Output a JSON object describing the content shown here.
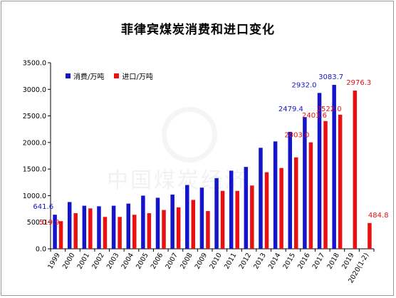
{
  "title": "菲律宾煤炭消费和进口变化",
  "watermark": "中国煤炭经济",
  "colors": {
    "consumption": "#1414c8",
    "import": "#e81010"
  },
  "chart_data": {
    "type": "bar",
    "title": "菲律宾煤炭消费和进口变化",
    "categories": [
      "1999",
      "2000",
      "2001",
      "2002",
      "2003",
      "2004",
      "2005",
      "2006",
      "2007",
      "2008",
      "2009",
      "2010",
      "2011",
      "2012",
      "2013",
      "2014",
      "2015",
      "2016",
      "2017",
      "2018",
      "2019",
      "2020(1-2)"
    ],
    "series": [
      {
        "name": "消费/万吨",
        "values": [
          641.6,
          880,
          810,
          800,
          810,
          850,
          1000,
          960,
          1020,
          1200,
          1150,
          1330,
          1470,
          1540,
          1900,
          2020,
          2200,
          2479.4,
          2932.0,
          3083.7,
          null,
          null
        ],
        "data_labels": {
          "0": "641.6",
          "17": "2479.4",
          "18": "2932.0",
          "19": "3083.7"
        }
      },
      {
        "name": "进口/万吨",
        "values": [
          519.9,
          670,
          760,
          600,
          600,
          640,
          670,
          730,
          780,
          920,
          710,
          1090,
          1090,
          1190,
          1440,
          1520,
          1720,
          2003.0,
          2403.6,
          2522.0,
          2976.3,
          484.8
        ],
        "data_labels": {
          "0": "519.9",
          "17": "2003.0",
          "18": "2403.6",
          "19": "2522.0",
          "20": "2976.3",
          "21": "484.8"
        }
      }
    ],
    "yticks": [
      "0.0",
      "500.0",
      "1000.0",
      "1500.0",
      "2000.0",
      "2500.0",
      "3000.0",
      "3500.0"
    ],
    "ylim": [
      0,
      3500
    ],
    "grid": false,
    "legend": "top-left"
  }
}
